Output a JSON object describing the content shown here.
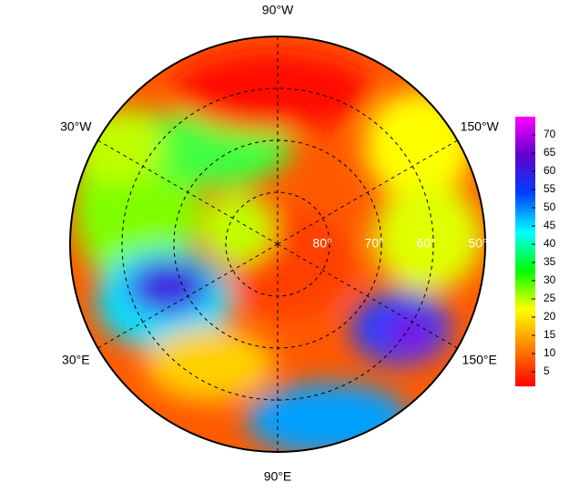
{
  "map": {
    "center_latitude": 90,
    "edge_latitude": 50,
    "longitude_labels": [
      {
        "value": -90,
        "label": "90°W"
      },
      {
        "value": -30,
        "label": "30°W"
      },
      {
        "value": -150,
        "label": "150°W"
      },
      {
        "value": 30,
        "label": "30°E"
      },
      {
        "value": 150,
        "label": "150°E"
      },
      {
        "value": 90,
        "label": "90°E"
      }
    ],
    "latitude_labels": [
      {
        "value": 80,
        "label": "80°"
      },
      {
        "value": 70,
        "label": "70°"
      },
      {
        "value": 60,
        "label": "60°"
      },
      {
        "value": 50,
        "label": "50°"
      }
    ],
    "colorbar": {
      "lim": [
        1,
        75
      ],
      "ticks": [
        5,
        10,
        15,
        20,
        25,
        30,
        35,
        40,
        45,
        50,
        55,
        60,
        65,
        70
      ],
      "colors": [
        "#ff0000",
        "#ff8000",
        "#ffff00",
        "#00ff00",
        "#00ffff",
        "#0040ff",
        "#6000d0",
        "#ff00ff"
      ]
    }
  }
}
